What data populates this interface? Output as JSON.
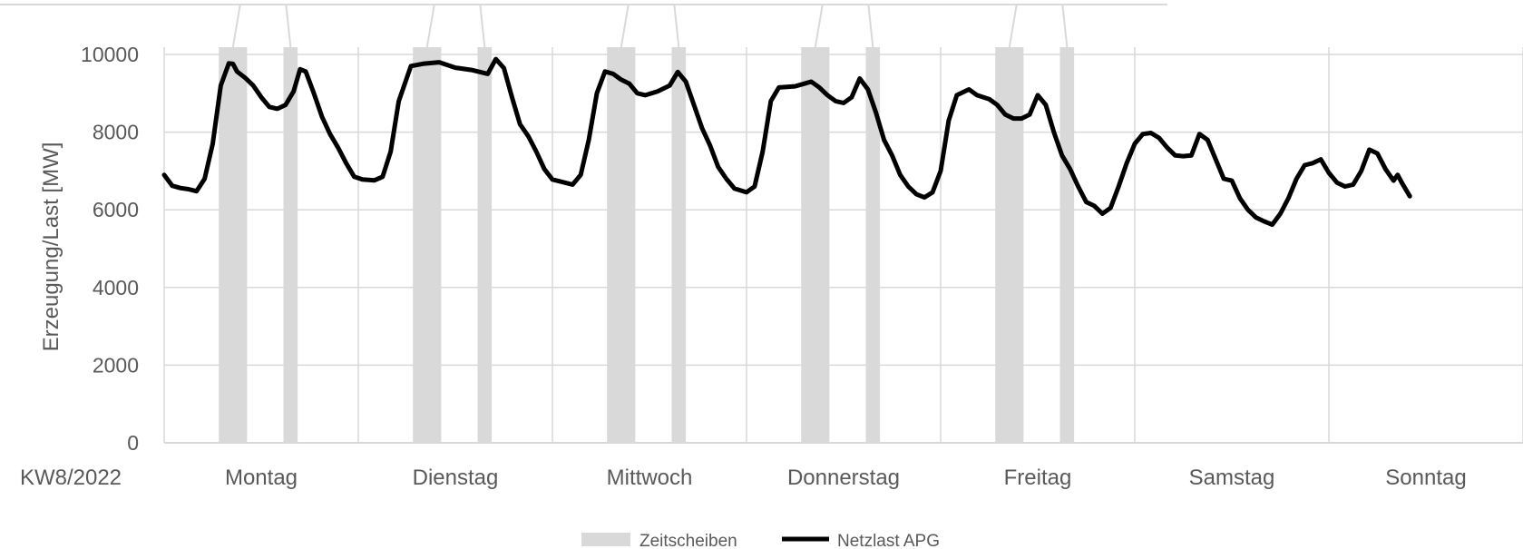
{
  "chart_data": {
    "type": "line",
    "ylabel": "Erzeugung/Last [MW]",
    "xlabel": "",
    "corner_label": "KW8/2022",
    "ylim": [
      0,
      10000
    ],
    "yticks": [
      0,
      2000,
      4000,
      6000,
      8000,
      10000
    ],
    "grid": true,
    "legend_position": "bottom",
    "categories": [
      "Montag",
      "Dienstag",
      "Mittwoch",
      "Donnerstag",
      "Freitag",
      "Samstag",
      "Sonntag"
    ],
    "x_unit": "hours since start of week (Montag 00:00)",
    "xlim": [
      0,
      168
    ],
    "series": [
      {
        "name": "Netzlast APG",
        "color": "#000000",
        "points": [
          [
            0,
            6900
          ],
          [
            1,
            6620
          ],
          [
            2,
            6560
          ],
          [
            3,
            6530
          ],
          [
            4,
            6480
          ],
          [
            5,
            6800
          ],
          [
            6,
            7700
          ],
          [
            7,
            9200
          ],
          [
            8,
            9770
          ],
          [
            8.5,
            9760
          ],
          [
            9,
            9560
          ],
          [
            10,
            9400
          ],
          [
            11,
            9200
          ],
          [
            12,
            8900
          ],
          [
            13,
            8650
          ],
          [
            14,
            8600
          ],
          [
            15,
            8700
          ],
          [
            16,
            9050
          ],
          [
            16.8,
            9620
          ],
          [
            17.5,
            9560
          ],
          [
            18.5,
            9000
          ],
          [
            19.5,
            8400
          ],
          [
            20.5,
            7950
          ],
          [
            21.5,
            7600
          ],
          [
            22.5,
            7200
          ],
          [
            23.5,
            6850
          ],
          [
            24.5,
            6780
          ],
          [
            26,
            6760
          ],
          [
            27,
            6850
          ],
          [
            28,
            7500
          ],
          [
            29,
            8800
          ],
          [
            30.5,
            9700
          ],
          [
            32,
            9760
          ],
          [
            34,
            9800
          ],
          [
            36,
            9660
          ],
          [
            38,
            9600
          ],
          [
            40,
            9500
          ],
          [
            41,
            9880
          ],
          [
            42,
            9650
          ],
          [
            43,
            8900
          ],
          [
            44,
            8200
          ],
          [
            45,
            7900
          ],
          [
            46,
            7500
          ],
          [
            47,
            7050
          ],
          [
            48,
            6780
          ],
          [
            49.5,
            6700
          ],
          [
            50.5,
            6650
          ],
          [
            51.5,
            6900
          ],
          [
            52.5,
            7800
          ],
          [
            53.5,
            9000
          ],
          [
            54.5,
            9560
          ],
          [
            55.5,
            9500
          ],
          [
            56.5,
            9350
          ],
          [
            57.5,
            9250
          ],
          [
            58.5,
            9000
          ],
          [
            59.5,
            8950
          ],
          [
            61,
            9050
          ],
          [
            62.5,
            9200
          ],
          [
            63.5,
            9550
          ],
          [
            64.5,
            9300
          ],
          [
            65.5,
            8700
          ],
          [
            66.5,
            8100
          ],
          [
            67.5,
            7650
          ],
          [
            68.5,
            7100
          ],
          [
            69.5,
            6800
          ],
          [
            70.5,
            6550
          ],
          [
            72,
            6450
          ],
          [
            73,
            6600
          ],
          [
            74,
            7500
          ],
          [
            75,
            8800
          ],
          [
            76,
            9150
          ],
          [
            78,
            9180
          ],
          [
            80,
            9300
          ],
          [
            81,
            9150
          ],
          [
            82,
            8950
          ],
          [
            83,
            8800
          ],
          [
            84,
            8750
          ],
          [
            85,
            8900
          ],
          [
            86,
            9380
          ],
          [
            87,
            9100
          ],
          [
            88,
            8500
          ],
          [
            89,
            7800
          ],
          [
            90,
            7400
          ],
          [
            91,
            6900
          ],
          [
            92,
            6600
          ],
          [
            93,
            6400
          ],
          [
            94,
            6320
          ],
          [
            95,
            6450
          ],
          [
            96,
            7000
          ],
          [
            97,
            8300
          ],
          [
            98,
            8950
          ],
          [
            99.5,
            9100
          ],
          [
            100.5,
            8950
          ],
          [
            102,
            8850
          ],
          [
            103,
            8700
          ],
          [
            104,
            8450
          ],
          [
            105,
            8350
          ],
          [
            106,
            8350
          ],
          [
            107,
            8450
          ],
          [
            108,
            8950
          ],
          [
            109,
            8700
          ],
          [
            110,
            8000
          ],
          [
            111,
            7400
          ],
          [
            112,
            7050
          ],
          [
            113,
            6600
          ],
          [
            114,
            6200
          ],
          [
            115,
            6100
          ],
          [
            116,
            5900
          ],
          [
            117,
            6050
          ],
          [
            118,
            6600
          ],
          [
            119,
            7200
          ],
          [
            120,
            7700
          ],
          [
            121,
            7950
          ],
          [
            122,
            7980
          ],
          [
            123,
            7850
          ],
          [
            124,
            7600
          ],
          [
            125,
            7400
          ],
          [
            126,
            7380
          ],
          [
            127,
            7400
          ],
          [
            128,
            7950
          ],
          [
            129,
            7800
          ],
          [
            130,
            7300
          ],
          [
            131,
            6800
          ],
          [
            132,
            6750
          ],
          [
            133,
            6300
          ],
          [
            134,
            6000
          ],
          [
            135,
            5800
          ],
          [
            136,
            5700
          ],
          [
            137,
            5620
          ],
          [
            138,
            5900
          ],
          [
            139,
            6300
          ],
          [
            140,
            6800
          ],
          [
            141,
            7150
          ],
          [
            142,
            7200
          ],
          [
            143,
            7300
          ],
          [
            144,
            6950
          ],
          [
            145,
            6700
          ],
          [
            146,
            6600
          ],
          [
            147,
            6650
          ],
          [
            148,
            7000
          ],
          [
            149,
            7550
          ],
          [
            150,
            7450
          ],
          [
            151,
            7050
          ],
          [
            152,
            6750
          ],
          [
            152.5,
            6900
          ],
          [
            153,
            6700
          ],
          [
            154,
            6350
          ]
        ]
      }
    ],
    "highlight": {
      "name": "Zeitscheiben",
      "color": "#d9d9d9",
      "bands": [
        [
          6.75,
          10.25
        ],
        [
          14.75,
          16.5
        ],
        [
          30.75,
          34.25
        ],
        [
          38.75,
          40.5
        ],
        [
          54.75,
          58.25
        ],
        [
          62.75,
          64.5
        ],
        [
          78.75,
          82.25
        ],
        [
          86.75,
          88.5
        ],
        [
          102.75,
          106.25
        ],
        [
          110.75,
          112.5
        ]
      ]
    }
  }
}
